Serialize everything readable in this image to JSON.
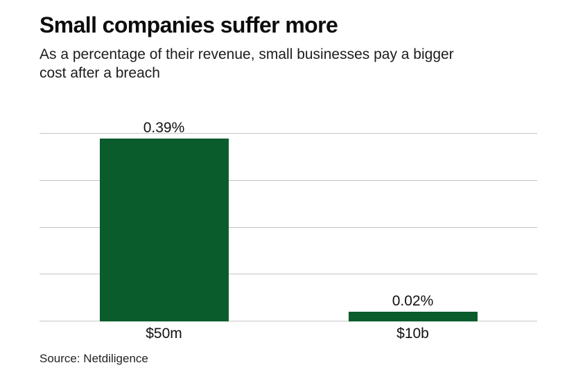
{
  "header": {
    "title": "Small companies suffer more",
    "subtitle": "As a percentage of their revenue, small businesses pay a bigger cost after a breach"
  },
  "source": "Source: Netdiligence",
  "colors": {
    "bar": "#0a5c2c",
    "grid": "#c4c4c4",
    "text": "#111111"
  },
  "chart_data": {
    "type": "bar",
    "title": "Small companies suffer more",
    "subtitle": "As a percentage of their revenue, small businesses pay a bigger cost after a breach",
    "categories": [
      "$50m",
      "$10b"
    ],
    "values": [
      0.39,
      0.02
    ],
    "value_labels": [
      "0.39%",
      "0.02%"
    ],
    "xlabel": "",
    "ylabel": "",
    "ylim": [
      0,
      0.4
    ],
    "gridlines": [
      0,
      0.1,
      0.2,
      0.3,
      0.4
    ],
    "grid": true,
    "legend": false,
    "source": "Source: Netdiligence"
  }
}
